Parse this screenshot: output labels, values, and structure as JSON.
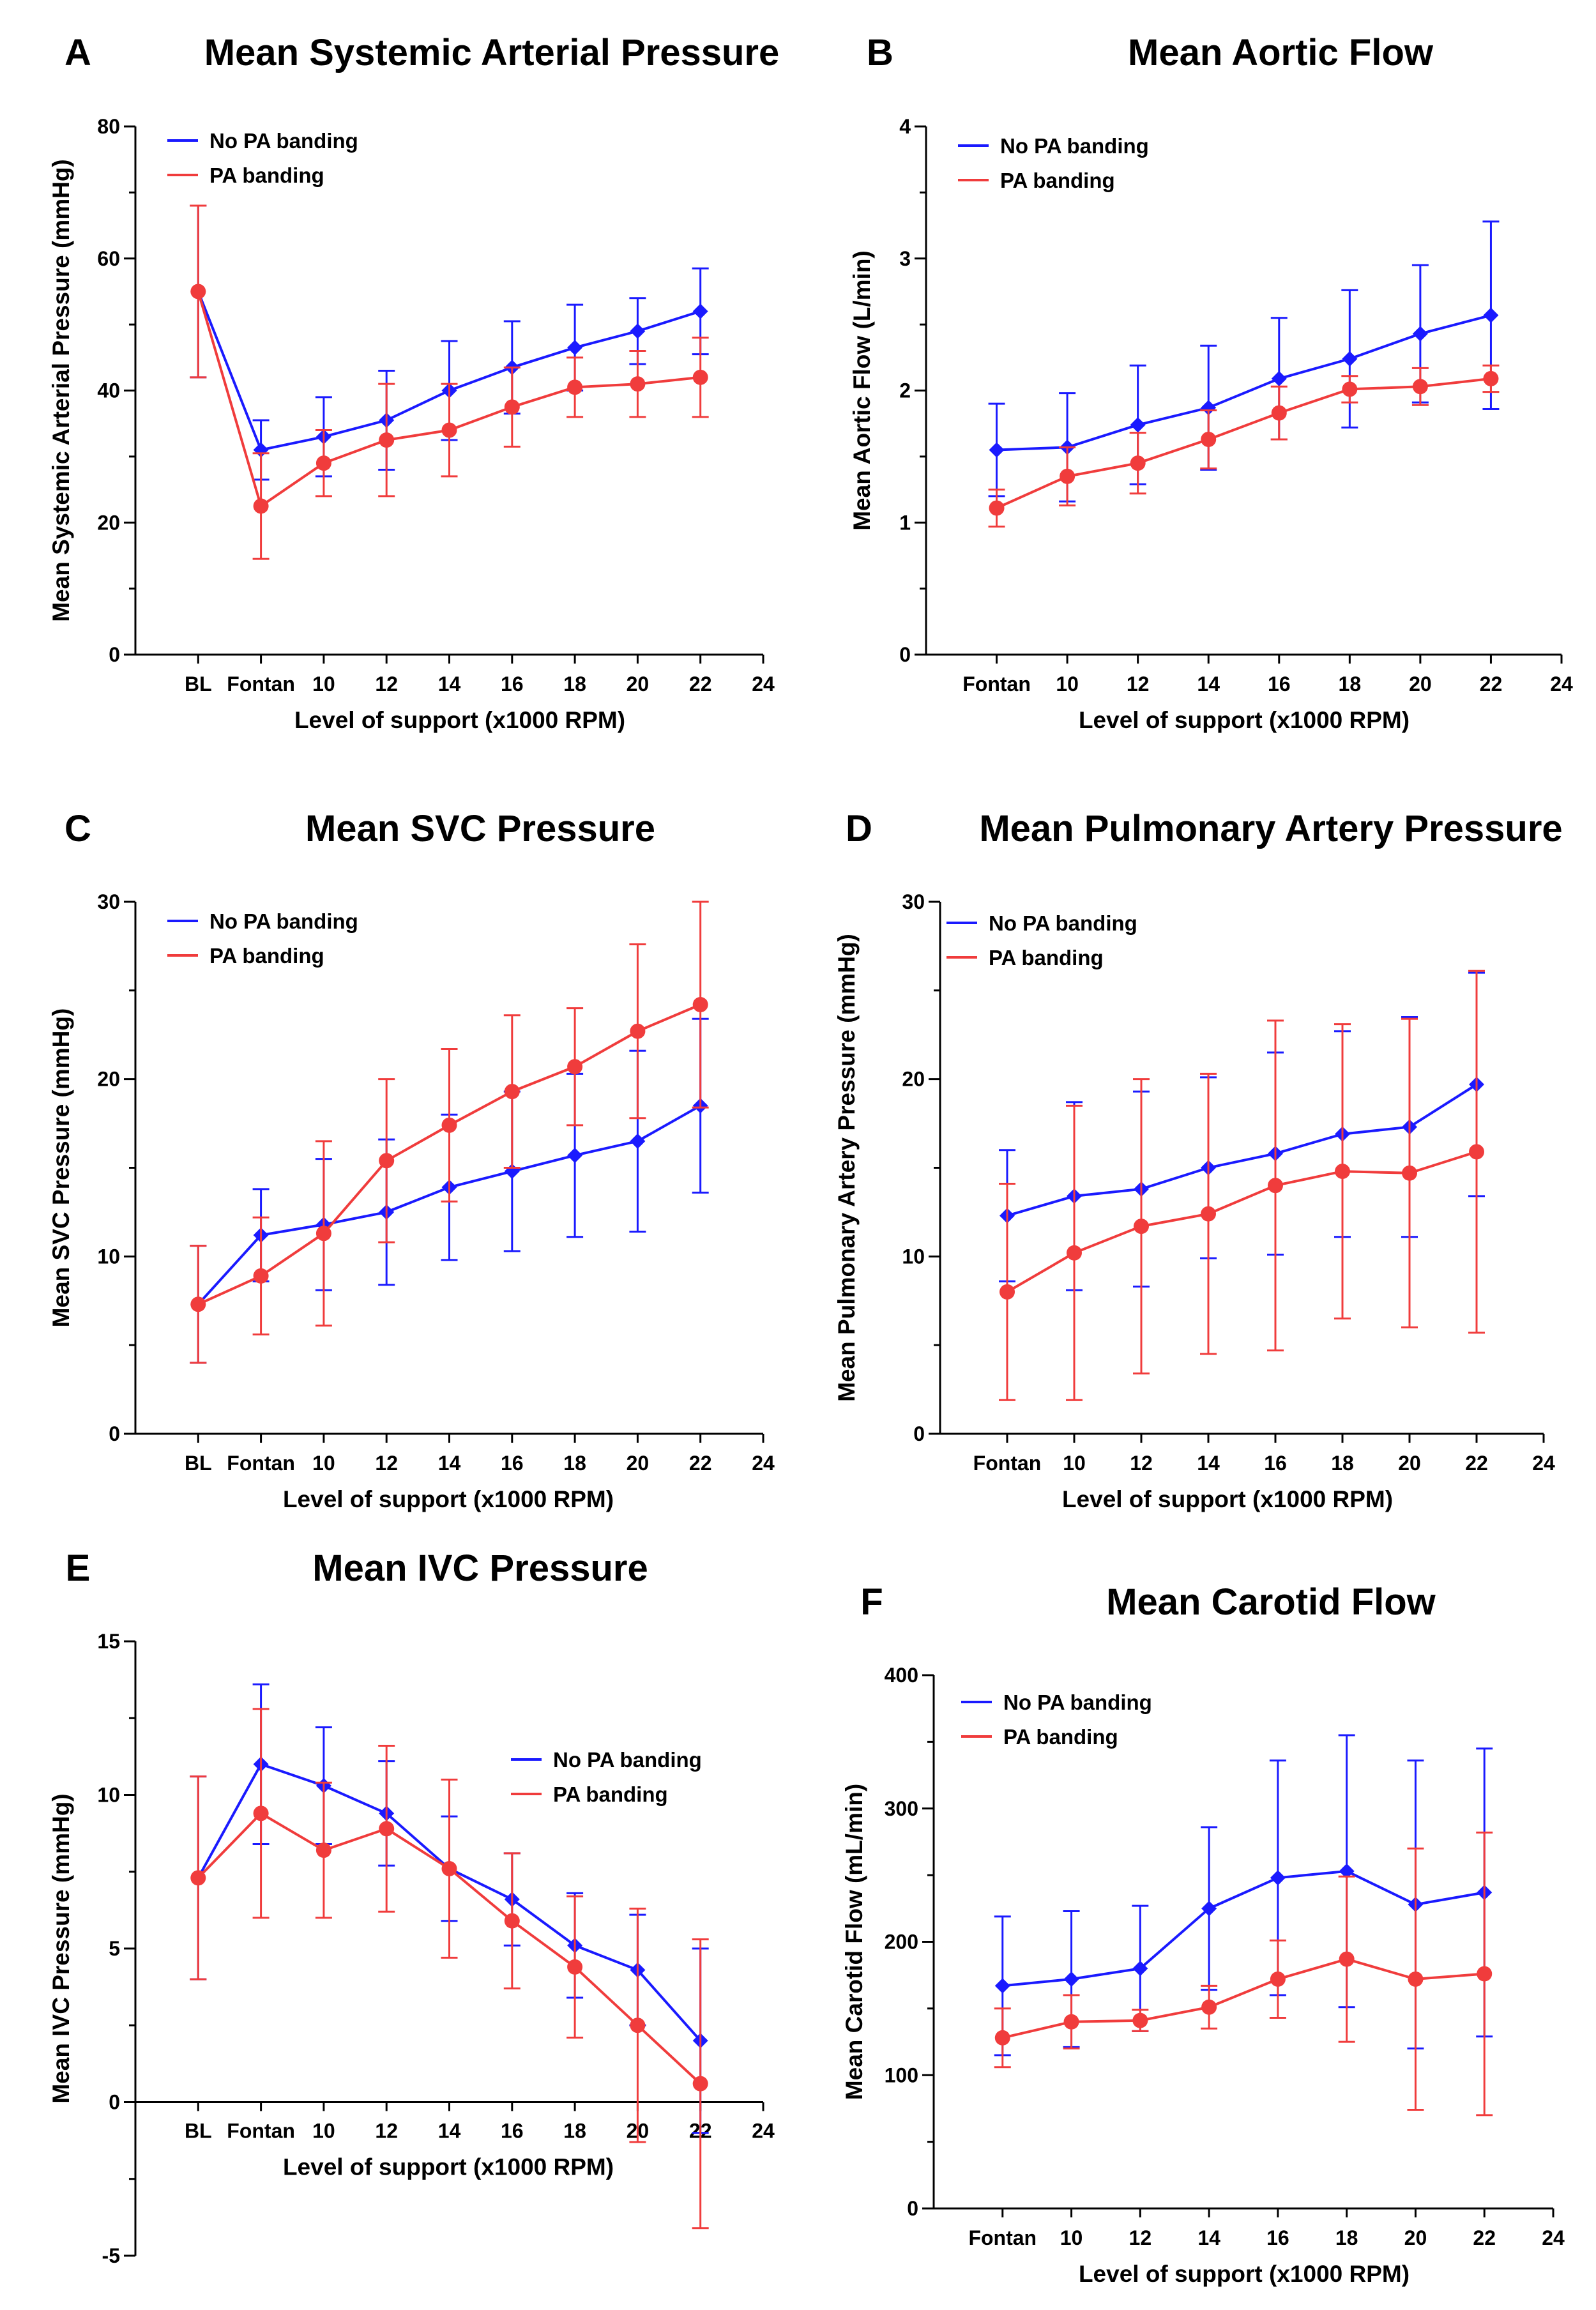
{
  "figure": {
    "colors": {
      "no_pa_banding": "#1a1aff",
      "pa_banding": "#f03c3c",
      "axis": "#000000"
    }
  },
  "chart_data": [
    {
      "panel": "A",
      "type": "line",
      "title": "Mean Systemic Arterial Pressure",
      "xlabel": "Level of support (x1000 RPM)",
      "ylabel": "Mean  Systemic Arterial Pressure (mmHg)",
      "x": [
        6,
        8,
        10,
        12,
        14,
        16,
        18,
        20,
        22
      ],
      "xtick_values": [
        6,
        8,
        10,
        12,
        14,
        16,
        18,
        20,
        22,
        24
      ],
      "xtick_labels": [
        "BL",
        "Fontan",
        "10",
        "12",
        "14",
        "16",
        "18",
        "20",
        "22",
        "24"
      ],
      "xlim": [
        4,
        24
      ],
      "ylim": [
        0,
        80
      ],
      "yticks": [
        0,
        20,
        40,
        60,
        80
      ],
      "legend": {
        "position": "top-left",
        "entries": [
          "No PA banding",
          "PA banding"
        ]
      },
      "series": [
        {
          "name": "No PA banding",
          "marker": "diamond",
          "values": [
            55,
            31,
            33,
            35.5,
            40,
            43.5,
            46.5,
            49,
            52
          ],
          "err": [
            13,
            4.5,
            6,
            7.5,
            7.5,
            7,
            6.5,
            5,
            6.5
          ]
        },
        {
          "name": "PA banding",
          "marker": "circle",
          "values": [
            55,
            22.5,
            29,
            32.5,
            34,
            37.5,
            40.5,
            41,
            42
          ],
          "err": [
            13,
            8,
            5,
            8.5,
            7,
            6,
            4.5,
            5,
            6
          ]
        }
      ]
    },
    {
      "panel": "B",
      "type": "line",
      "title": "Mean Aortic Flow",
      "xlabel": "Level of support (x1000 RPM)",
      "ylabel": "Mean Aortic Flow (L/min)",
      "x": [
        8,
        10,
        12,
        14,
        16,
        18,
        20,
        22
      ],
      "xtick_values": [
        8,
        10,
        12,
        14,
        16,
        18,
        20,
        22,
        24
      ],
      "xtick_labels": [
        "Fontan",
        "10",
        "12",
        "14",
        "16",
        "18",
        "20",
        "22",
        "24"
      ],
      "xlim": [
        6,
        24
      ],
      "ylim": [
        0,
        4
      ],
      "yticks": [
        0,
        1,
        2,
        3,
        4
      ],
      "legend": {
        "position": "top-left",
        "entries": [
          "No PA banding",
          "PA banding"
        ]
      },
      "series": [
        {
          "name": "No PA banding",
          "marker": "diamond",
          "values": [
            1.55,
            1.57,
            1.74,
            1.87,
            2.09,
            2.24,
            2.43,
            2.57
          ],
          "err": [
            0.35,
            0.41,
            0.45,
            0.47,
            0.46,
            0.52,
            0.52,
            0.71
          ]
        },
        {
          "name": "PA banding",
          "marker": "circle",
          "values": [
            1.11,
            1.35,
            1.45,
            1.63,
            1.83,
            2.01,
            2.03,
            2.09
          ],
          "err": [
            0.14,
            0.22,
            0.23,
            0.22,
            0.2,
            0.1,
            0.14,
            0.1
          ]
        }
      ]
    },
    {
      "panel": "C",
      "type": "line",
      "title": "Mean SVC Pressure",
      "xlabel": "Level of support (x1000 RPM)",
      "ylabel": "Mean SVC Pressure (mmHg)",
      "x": [
        6,
        8,
        10,
        12,
        14,
        16,
        18,
        20,
        22
      ],
      "xtick_values": [
        6,
        8,
        10,
        12,
        14,
        16,
        18,
        20,
        22,
        24
      ],
      "xtick_labels": [
        "BL",
        "Fontan",
        "10",
        "12",
        "14",
        "16",
        "18",
        "20",
        "22",
        "24"
      ],
      "xlim": [
        4,
        24
      ],
      "ylim": [
        0,
        30
      ],
      "yticks": [
        0,
        10,
        20,
        30
      ],
      "legend": {
        "position": "top-left",
        "entries": [
          "No PA banding",
          "PA banding"
        ]
      },
      "series": [
        {
          "name": "No PA banding",
          "marker": "diamond",
          "values": [
            7.3,
            11.2,
            11.8,
            12.5,
            13.9,
            14.8,
            15.7,
            16.5,
            18.5
          ],
          "err": [
            3.3,
            2.6,
            3.7,
            4.1,
            4.1,
            4.5,
            4.6,
            5.1,
            4.9
          ]
        },
        {
          "name": "PA banding",
          "marker": "circle",
          "values": [
            7.3,
            8.9,
            11.3,
            15.4,
            17.4,
            19.3,
            20.7,
            22.7,
            24.2
          ],
          "err": [
            3.3,
            3.3,
            5.2,
            4.6,
            4.3,
            4.3,
            3.3,
            4.9,
            5.8
          ]
        }
      ]
    },
    {
      "panel": "D",
      "type": "line",
      "title": "Mean Pulmonary Artery Pressure",
      "xlabel": "Level of support (x1000 RPM)",
      "ylabel": "Mean Pulmonary  Artery Pressure (mmHg)",
      "x": [
        8,
        10,
        12,
        14,
        16,
        18,
        20,
        22
      ],
      "xtick_values": [
        8,
        10,
        12,
        14,
        16,
        18,
        20,
        22,
        24
      ],
      "xtick_labels": [
        "Fontan",
        "10",
        "12",
        "14",
        "16",
        "18",
        "20",
        "22",
        "24"
      ],
      "xlim": [
        6,
        24
      ],
      "ylim": [
        0,
        30
      ],
      "yticks": [
        0,
        10,
        20,
        30
      ],
      "legend": {
        "position": "top-left",
        "entries": [
          "No PA banding",
          "PA banding"
        ]
      },
      "series": [
        {
          "name": "No PA banding",
          "marker": "diamond",
          "values": [
            12.3,
            13.4,
            13.8,
            15.0,
            15.8,
            16.9,
            17.3,
            19.7
          ],
          "err": [
            3.7,
            5.3,
            5.5,
            5.1,
            5.7,
            5.8,
            6.2,
            6.3
          ]
        },
        {
          "name": "PA banding",
          "marker": "circle",
          "values": [
            8.0,
            10.2,
            11.7,
            12.4,
            14.0,
            14.8,
            14.7,
            15.9
          ],
          "err": [
            6.1,
            8.3,
            8.3,
            7.9,
            9.3,
            8.3,
            8.7,
            10.2
          ]
        }
      ]
    },
    {
      "panel": "E",
      "type": "line",
      "title": "Mean IVC Pressure",
      "xlabel": "Level of support (x1000 RPM)",
      "ylabel": "Mean IVC Pressure (mmHg)",
      "x": [
        6,
        8,
        10,
        12,
        14,
        16,
        18,
        20,
        22
      ],
      "xtick_values": [
        6,
        8,
        10,
        12,
        14,
        16,
        18,
        20,
        22,
        24
      ],
      "xtick_labels": [
        "BL",
        "Fontan",
        "10",
        "12",
        "14",
        "16",
        "18",
        "20",
        "22",
        "24"
      ],
      "xlim": [
        4,
        24
      ],
      "ylim": [
        -5,
        15
      ],
      "yticks": [
        -5,
        0,
        5,
        10,
        15
      ],
      "legend": {
        "position": "right",
        "entries": [
          "No PA banding",
          "PA banding"
        ]
      },
      "series": [
        {
          "name": "No PA banding",
          "marker": "diamond",
          "values": [
            7.3,
            11.0,
            10.3,
            9.4,
            7.6,
            6.6,
            5.1,
            4.3,
            2.0
          ],
          "err": [
            3.3,
            2.6,
            1.9,
            1.7,
            1.7,
            1.5,
            1.7,
            1.8,
            3.0
          ]
        },
        {
          "name": "PA banding",
          "marker": "circle",
          "values": [
            7.3,
            9.4,
            8.2,
            8.9,
            7.6,
            5.9,
            4.4,
            2.5,
            0.6
          ],
          "err": [
            3.3,
            3.4,
            2.2,
            2.7,
            2.9,
            2.2,
            2.3,
            3.8,
            4.7
          ]
        }
      ]
    },
    {
      "panel": "F",
      "type": "line",
      "title": "Mean Carotid Flow",
      "xlabel": "Level of support (x1000 RPM)",
      "ylabel": "Mean Carotid Flow (mL/min)",
      "x": [
        8,
        10,
        12,
        14,
        16,
        18,
        20,
        22
      ],
      "xtick_values": [
        8,
        10,
        12,
        14,
        16,
        18,
        20,
        22,
        24
      ],
      "xtick_labels": [
        "Fontan",
        "10",
        "12",
        "14",
        "16",
        "18",
        "20",
        "22",
        "24"
      ],
      "xlim": [
        6,
        24
      ],
      "ylim": [
        0,
        400
      ],
      "yticks": [
        0,
        100,
        200,
        300,
        400
      ],
      "legend": {
        "position": "top-left",
        "entries": [
          "No PA banding",
          "PA banding"
        ]
      },
      "series": [
        {
          "name": "No PA banding",
          "marker": "diamond",
          "values": [
            167,
            172,
            180,
            225,
            248,
            253,
            228,
            237
          ],
          "err": [
            52,
            51,
            47,
            61,
            88,
            102,
            108,
            108
          ]
        },
        {
          "name": "PA banding",
          "marker": "circle",
          "values": [
            128,
            140,
            141,
            151,
            172,
            187,
            172,
            176
          ],
          "err": [
            22,
            20,
            8,
            16,
            29,
            62,
            98,
            106
          ]
        }
      ]
    }
  ]
}
